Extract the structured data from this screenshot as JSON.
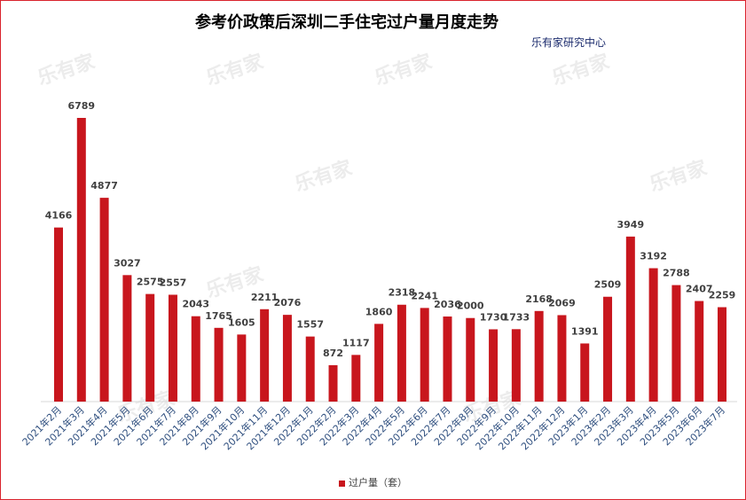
{
  "chart_data": {
    "type": "bar",
    "title": "参考价政策后深圳二手住宅过户量月度走势",
    "subtitle": "乐有家研究中心",
    "watermark": "乐有家",
    "categories": [
      "2021年2月",
      "2021年3月",
      "2021年4月",
      "2021年5月",
      "2021年6月",
      "2021年7月",
      "2021年8月",
      "2021年9月",
      "2021年10月",
      "2021年11月",
      "2021年12月",
      "2022年1月",
      "2022年2月",
      "2022年3月",
      "2022年4月",
      "2022年5月",
      "2022年6月",
      "2022年7月",
      "2022年8月",
      "2022年9月",
      "2022年10月",
      "2022年11月",
      "2022年12月",
      "2023年1月",
      "2023年2月",
      "2023年3月",
      "2023年4月",
      "2023年5月",
      "2023年6月",
      "2023年7月"
    ],
    "series": [
      {
        "name": "过户量（套）",
        "color": "#c8161d",
        "values": [
          4166,
          6789,
          4877,
          3027,
          2575,
          2557,
          2043,
          1765,
          1605,
          2211,
          2076,
          1557,
          872,
          1117,
          1860,
          2318,
          2241,
          2036,
          2000,
          1730,
          1733,
          2168,
          2069,
          1391,
          2509,
          3949,
          3192,
          2788,
          2407,
          2259
        ]
      }
    ],
    "xlabel": "",
    "ylabel": "",
    "ylim": [
      0,
      6789
    ],
    "grid": false,
    "legend": "bottom-center",
    "data_labels": true
  }
}
